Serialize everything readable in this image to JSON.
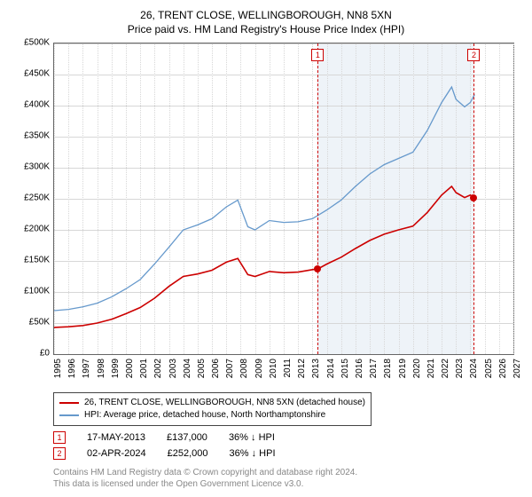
{
  "title": "26, TRENT CLOSE, WELLINGBOROUGH, NN8 5XN",
  "subtitle": "Price paid vs. HM Land Registry's House Price Index (HPI)",
  "chart": {
    "type": "line",
    "background_color": "#ffffff",
    "grid_color": "#d7d7d7",
    "border_color": "#666666",
    "shade_band_color": "#eef3f8",
    "xlim": [
      1995,
      2027
    ],
    "ylim": [
      0,
      500000
    ],
    "y_tick_step": 50000,
    "y_tick_labels": [
      "£0",
      "£50K",
      "£100K",
      "£150K",
      "£200K",
      "£250K",
      "£300K",
      "£350K",
      "£400K",
      "£450K",
      "£500K"
    ],
    "x_tick_step": 1,
    "x_tick_labels": [
      "1995",
      "1996",
      "1997",
      "1998",
      "1999",
      "2000",
      "2001",
      "2002",
      "2003",
      "2004",
      "2005",
      "2006",
      "2007",
      "2008",
      "2009",
      "2010",
      "2011",
      "2012",
      "2013",
      "2014",
      "2015",
      "2016",
      "2017",
      "2018",
      "2019",
      "2020",
      "2021",
      "2022",
      "2023",
      "2024",
      "2025",
      "2026",
      "2027"
    ],
    "shade_band_x": [
      2013.37,
      2024.25
    ],
    "event_lines": [
      {
        "x": 2013.37,
        "label": "1"
      },
      {
        "x": 2024.25,
        "label": "2"
      }
    ],
    "series": [
      {
        "name": "hpi",
        "label": "HPI: Average price, detached house, North Northamptonshire",
        "color": "#6699cc",
        "line_width": 1.3,
        "data": [
          [
            1995,
            70000
          ],
          [
            1996,
            72000
          ],
          [
            1997,
            76000
          ],
          [
            1998,
            82000
          ],
          [
            1999,
            92000
          ],
          [
            2000,
            105000
          ],
          [
            2001,
            120000
          ],
          [
            2002,
            145000
          ],
          [
            2003,
            172000
          ],
          [
            2004,
            200000
          ],
          [
            2005,
            208000
          ],
          [
            2006,
            218000
          ],
          [
            2007,
            237000
          ],
          [
            2007.8,
            248000
          ],
          [
            2008.5,
            205000
          ],
          [
            2009,
            200000
          ],
          [
            2010,
            215000
          ],
          [
            2011,
            212000
          ],
          [
            2012,
            213000
          ],
          [
            2013,
            218000
          ],
          [
            2014,
            232000
          ],
          [
            2015,
            248000
          ],
          [
            2016,
            270000
          ],
          [
            2017,
            290000
          ],
          [
            2018,
            305000
          ],
          [
            2019,
            315000
          ],
          [
            2020,
            325000
          ],
          [
            2021,
            360000
          ],
          [
            2022,
            405000
          ],
          [
            2022.7,
            430000
          ],
          [
            2023,
            410000
          ],
          [
            2023.6,
            398000
          ],
          [
            2024,
            405000
          ],
          [
            2024.3,
            418000
          ]
        ]
      },
      {
        "name": "property",
        "label": "26, TRENT CLOSE, WELLINGBOROUGH, NN8 5XN (detached house)",
        "color": "#cc0000",
        "line_width": 1.6,
        "data": [
          [
            1995,
            43000
          ],
          [
            1996,
            44000
          ],
          [
            1997,
            46000
          ],
          [
            1998,
            50000
          ],
          [
            1999,
            56000
          ],
          [
            2000,
            65000
          ],
          [
            2001,
            75000
          ],
          [
            2002,
            90000
          ],
          [
            2003,
            109000
          ],
          [
            2004,
            125000
          ],
          [
            2005,
            129000
          ],
          [
            2006,
            135000
          ],
          [
            2007,
            148000
          ],
          [
            2007.8,
            154000
          ],
          [
            2008.5,
            128000
          ],
          [
            2009,
            125000
          ],
          [
            2010,
            133000
          ],
          [
            2011,
            131000
          ],
          [
            2012,
            132000
          ],
          [
            2013,
            136000
          ],
          [
            2013.37,
            137000
          ],
          [
            2014,
            145000
          ],
          [
            2015,
            156000
          ],
          [
            2016,
            170000
          ],
          [
            2017,
            183000
          ],
          [
            2018,
            193000
          ],
          [
            2019,
            200000
          ],
          [
            2020,
            206000
          ],
          [
            2021,
            228000
          ],
          [
            2022,
            256000
          ],
          [
            2022.7,
            270000
          ],
          [
            2023,
            260000
          ],
          [
            2023.6,
            252000
          ],
          [
            2024,
            256000
          ],
          [
            2024.25,
            252000
          ]
        ]
      }
    ],
    "points": [
      {
        "x": 2013.37,
        "y": 137000,
        "color": "#cc0000"
      },
      {
        "x": 2024.25,
        "y": 252000,
        "color": "#cc0000"
      }
    ]
  },
  "legend": {
    "items": [
      {
        "color": "#cc0000",
        "label": "26, TRENT CLOSE, WELLINGBOROUGH, NN8 5XN (detached house)"
      },
      {
        "color": "#6699cc",
        "label": "HPI: Average price, detached house, North Northamptonshire"
      }
    ]
  },
  "events_table": {
    "rows": [
      {
        "num": "1",
        "date": "17-MAY-2013",
        "price": "£137,000",
        "delta": "36% ↓ HPI"
      },
      {
        "num": "2",
        "date": "02-APR-2024",
        "price": "£252,000",
        "delta": "36% ↓ HPI"
      }
    ]
  },
  "footer": {
    "line1": "Contains HM Land Registry data © Crown copyright and database right 2024.",
    "line2": "This data is licensed under the Open Government Licence v3.0."
  },
  "label_fontsize": 10,
  "title_fontsize": 12
}
